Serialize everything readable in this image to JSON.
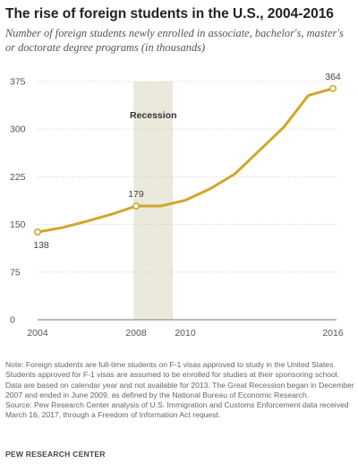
{
  "chart_data": {
    "type": "line",
    "title": "The rise of foreign students in the U.S., 2004-2016",
    "subtitle": "Number of foreign students newly enrolled in associate, bachelor's, master's or doctorate degree programs (in thousands)",
    "x": [
      2004,
      2005,
      2006,
      2007,
      2008,
      2009,
      2010,
      2011,
      2012,
      2013,
      2014,
      2015,
      2016
    ],
    "series": [
      {
        "values": [
          138,
          145,
          155,
          166,
          179,
          179,
          188,
          206,
          229,
          null,
          303,
          353,
          364
        ]
      }
    ],
    "x_tick_labels": [
      "2004",
      "2008",
      "2010",
      "2016"
    ],
    "x_ticks": [
      2004,
      2008,
      2010,
      2016
    ],
    "y_ticks": [
      0,
      75,
      150,
      225,
      300,
      375
    ],
    "y_tick_labels": [
      "0",
      "75",
      "150",
      "225",
      "300",
      "375"
    ],
    "ylim": [
      0,
      375
    ],
    "xlim": [
      2004,
      2016
    ],
    "data_labels": [
      {
        "x": 2004,
        "y": 138,
        "text": "138"
      },
      {
        "x": 2008,
        "y": 179,
        "text": "179"
      },
      {
        "x": 2016,
        "y": 364,
        "text": "364"
      }
    ],
    "shaded_region": {
      "x_start": 2007.9,
      "x_end": 2009.5,
      "label": "Recession"
    },
    "grid": "horizontal",
    "legend": "none",
    "line_color": "#d1a62b",
    "shade_color": "#ebe8dc"
  },
  "notes": [
    "Note: Foreign students are full-time students on F-1 visas approved to study in the United States. Students approved for F-1 visas are assumed to be enrolled for studies at their sponsoring school. Data are based on calendar year and not available for 2013. The Great Recession began in December 2007 and ended in June 2009, as defined by the National Bureau of Economic Research.",
    "Source: Pew Research Center analysis of U.S. Immigration and Customs Enforcement data received March 16, 2017, through a Freedom of Information Act request."
  ],
  "brand": "PEW RESEARCH CENTER"
}
